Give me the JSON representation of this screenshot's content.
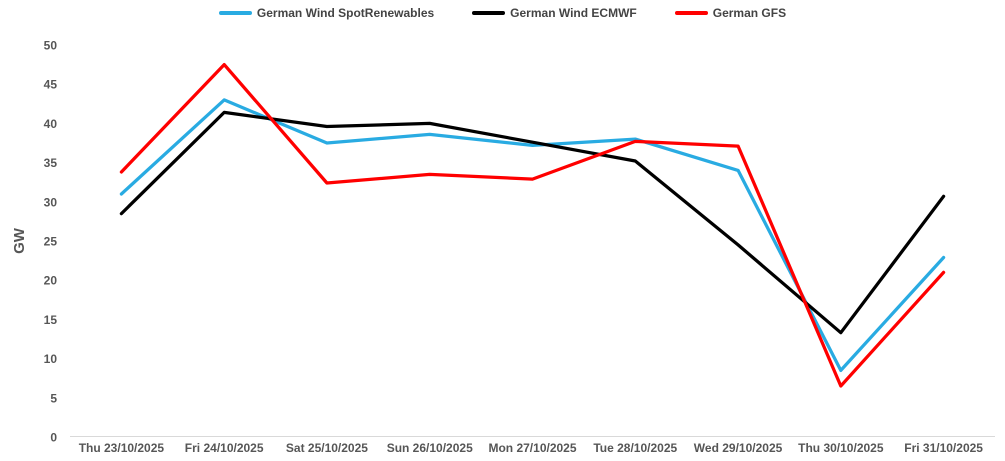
{
  "chart_data": {
    "type": "line",
    "title": "",
    "xlabel": "",
    "ylabel": "GW",
    "ylim": [
      0,
      50
    ],
    "ytick_step": 5,
    "grid": false,
    "legend_position": "top-center",
    "categories": [
      "Thu 23/10/2025",
      "Fri 24/10/2025",
      "Sat 25/10/2025",
      "Sun 26/10/2025",
      "Mon 27/10/2025",
      "Tue 28/10/2025",
      "Wed 29/10/2025",
      "Thu 30/10/2025",
      "Fri 31/10/2025"
    ],
    "series": [
      {
        "name": "German Wind SpotRenewables",
        "color": "#29ABE2",
        "values": [
          31.0,
          43.0,
          37.5,
          38.6,
          37.2,
          38.0,
          34.0,
          8.5,
          22.9
        ]
      },
      {
        "name": "German Wind ECMWF",
        "color": "#000000",
        "values": [
          28.5,
          41.4,
          39.6,
          40.0,
          37.6,
          35.2,
          24.5,
          13.3,
          30.7
        ]
      },
      {
        "name": "German GFS",
        "color": "#FF0000",
        "values": [
          33.8,
          47.5,
          32.4,
          33.5,
          32.9,
          37.7,
          37.1,
          6.5,
          21.0
        ]
      }
    ]
  },
  "colors": {
    "background": "#FFFFFF",
    "axis_line": "#D9D9D9",
    "tick_text": "#565656",
    "legend_text": "#444444"
  }
}
